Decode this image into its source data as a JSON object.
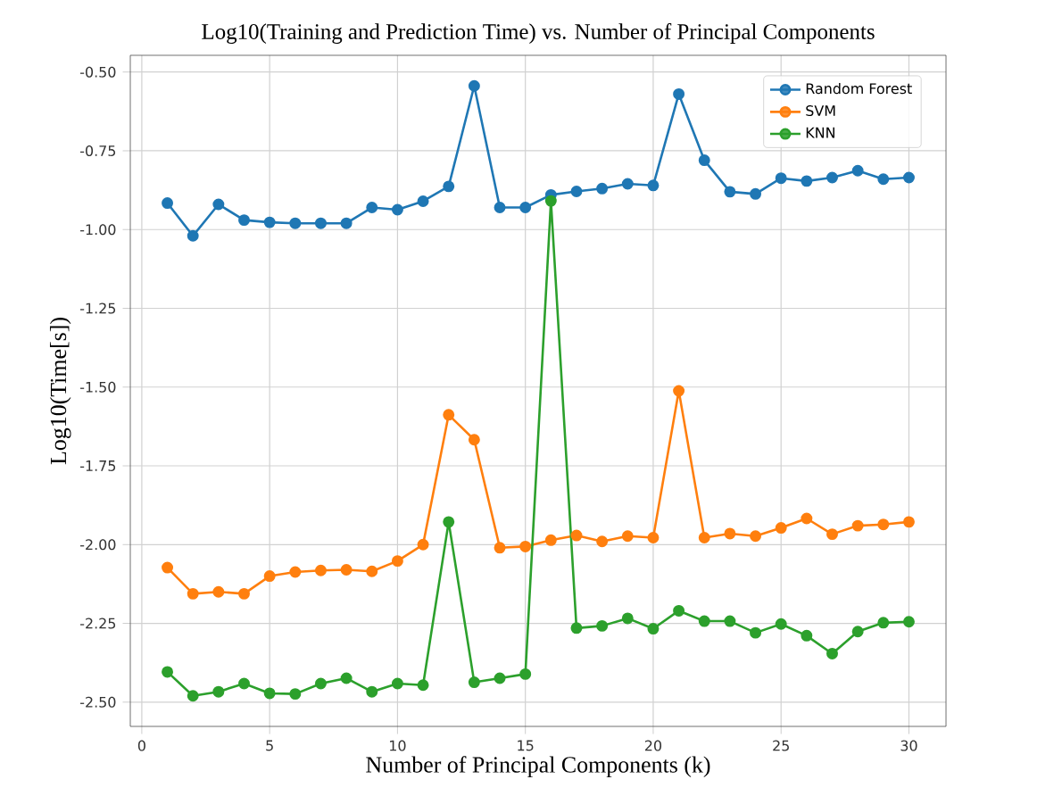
{
  "chart_data": {
    "type": "line",
    "title": "Log10(Training and Prediction Time) vs. Number of Principal Components",
    "xlabel": "Number of Principal Components (k)",
    "ylabel": "Log10(Time[s])",
    "x": [
      1,
      2,
      3,
      4,
      5,
      6,
      7,
      8,
      9,
      10,
      11,
      12,
      13,
      14,
      15,
      16,
      17,
      18,
      19,
      20,
      21,
      22,
      23,
      24,
      25,
      26,
      27,
      28,
      29,
      30
    ],
    "series": [
      {
        "name": "Random Forest",
        "color": "#1f77b4",
        "values": [
          -0.916,
          -1.02,
          -0.92,
          -0.97,
          -0.977,
          -0.98,
          -0.98,
          -0.98,
          -0.93,
          -0.937,
          -0.91,
          -0.863,
          -0.544,
          -0.93,
          -0.93,
          -0.89,
          -0.879,
          -0.87,
          -0.855,
          -0.86,
          -0.57,
          -0.78,
          -0.88,
          -0.887,
          -0.837,
          -0.846,
          -0.835,
          -0.813,
          -0.84,
          -0.835
        ]
      },
      {
        "name": "SVM",
        "color": "#ff7f0e",
        "values": [
          -2.073,
          -2.156,
          -2.15,
          -2.156,
          -2.1,
          -2.087,
          -2.082,
          -2.08,
          -2.085,
          -2.052,
          -2.0,
          -1.588,
          -1.667,
          -2.01,
          -2.006,
          -1.986,
          -1.971,
          -1.99,
          -1.973,
          -1.978,
          -1.512,
          -1.978,
          -1.965,
          -1.973,
          -1.947,
          -1.917,
          -1.967,
          -1.94,
          -1.936,
          -1.928
        ]
      },
      {
        "name": "KNN",
        "color": "#2ca02c",
        "values": [
          -2.404,
          -2.48,
          -2.467,
          -2.441,
          -2.472,
          -2.474,
          -2.441,
          -2.424,
          -2.467,
          -2.441,
          -2.446,
          -1.928,
          -2.437,
          -2.424,
          -2.411,
          -0.909,
          -2.265,
          -2.258,
          -2.234,
          -2.267,
          -2.21,
          -2.243,
          -2.243,
          -2.28,
          -2.252,
          -2.289,
          -2.346,
          -2.276,
          -2.248,
          -2.245
        ]
      }
    ],
    "xlim": [
      -0.45,
      31.45
    ],
    "ylim": [
      -2.577,
      -0.447
    ],
    "xticks": [
      0,
      5,
      10,
      15,
      20,
      25,
      30
    ],
    "yticks": [
      {
        "value": -0.5,
        "label": "-0.50"
      },
      {
        "value": -0.75,
        "label": "-0.75"
      },
      {
        "value": -1.0,
        "label": "-1.00"
      },
      {
        "value": -1.25,
        "label": "-1.25"
      },
      {
        "value": -1.5,
        "label": "-1.50"
      },
      {
        "value": -1.75,
        "label": "-1.75"
      },
      {
        "value": -2.0,
        "label": "-2.00"
      },
      {
        "value": -2.25,
        "label": "-2.25"
      },
      {
        "value": -2.5,
        "label": "-2.50"
      }
    ],
    "grid": true,
    "legend": "top right",
    "marker": "circle",
    "line_style": "solid"
  }
}
